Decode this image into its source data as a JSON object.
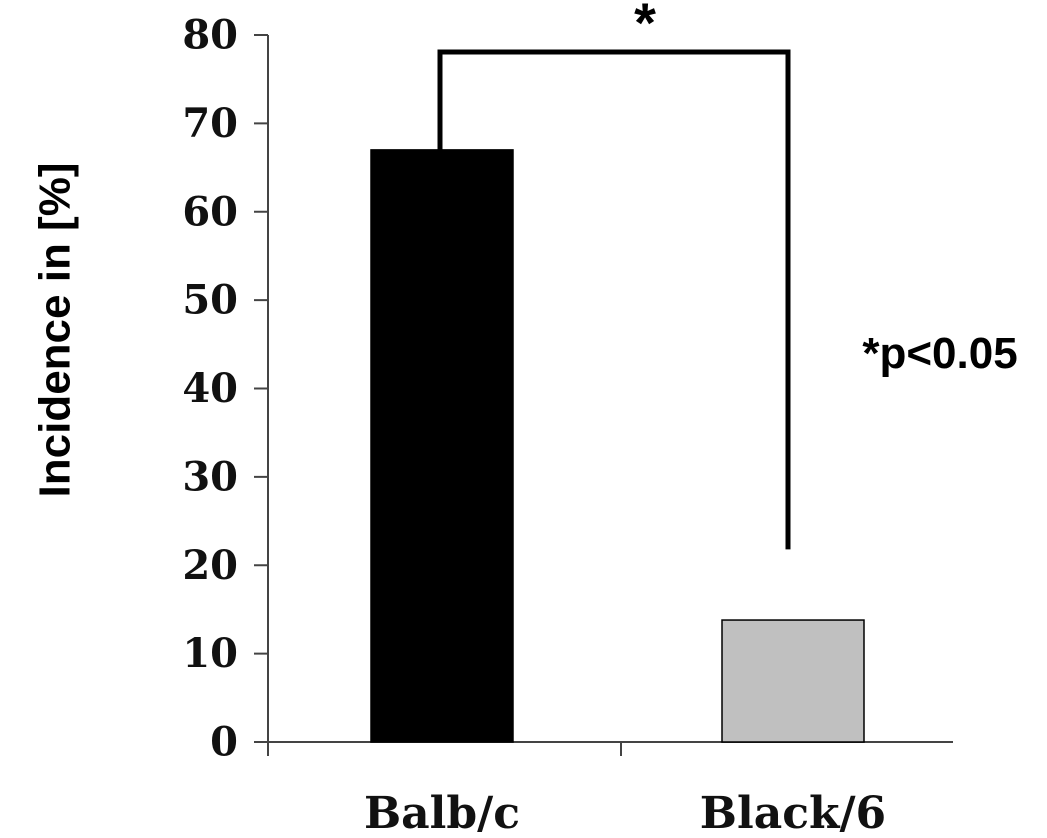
{
  "chart_data": {
    "type": "bar",
    "categories": [
      "Balb/c",
      "Black/6"
    ],
    "values": [
      67,
      13.8
    ],
    "colors": [
      "#000000",
      "#c0c0c0"
    ],
    "ylabel": "Incidence in [%]",
    "xlabel": "",
    "ylim": [
      0,
      80
    ],
    "yticks": [
      "0",
      "10",
      "20",
      "30",
      "40",
      "50",
      "60",
      "70",
      "80"
    ],
    "grid": false,
    "significance": {
      "marker": "*",
      "note": "*p<0.05"
    }
  }
}
